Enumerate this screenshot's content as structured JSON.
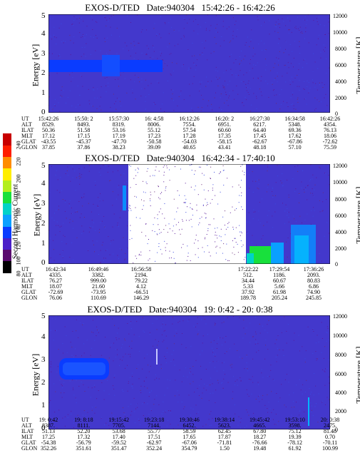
{
  "panels": [
    {
      "title": "EXOS-D/TED   Date:940304   15:42:26 - 16:42:26",
      "ylabel": "Energy [eV]",
      "ylabel2": "Temperature [K]",
      "yticks": [
        "5",
        "4",
        "3",
        "2",
        "1",
        "0"
      ],
      "y2ticks": [
        "12000",
        "10000",
        "8000",
        "6000",
        "4000",
        "2000",
        "0"
      ],
      "ephemeris": {
        "labels": [
          "UT",
          "ALT",
          "ILAT",
          "MLT",
          "GLAT",
          "GLON"
        ],
        "columns": [
          [
            "15:42:26",
            "8529.",
            "50.36",
            "17.12",
            "-43.55",
            "37.85"
          ],
          [
            "15:50: 2",
            "8493.",
            "51.58",
            "17.15",
            "-45.37",
            "37.86"
          ],
          [
            "15:57:30",
            "8319.",
            "53.16",
            "17.19",
            "-47.70",
            "38.23"
          ],
          [
            "16: 4:58",
            "8006.",
            "55.12",
            "17.23",
            "-50.58",
            "39.09"
          ],
          [
            "16:12:26",
            "7554.",
            "57.54",
            "17.28",
            "-54.03",
            "40.65"
          ],
          [
            "16:20: 2",
            "6951.",
            "60.60",
            "17.35",
            "-58.15",
            "43.41"
          ],
          [
            "16:27:30",
            "6217.",
            "64.40",
            "17.45",
            "-62.67",
            "48.18"
          ],
          [
            "16:34:58",
            "5348.",
            "69.36",
            "17.62",
            "-67.86",
            "57.10"
          ],
          [
            "16:42:26",
            "4354.",
            "76.13",
            "18.06",
            "-72.62",
            "75.59"
          ]
        ]
      }
    },
    {
      "title": "EXOS-D/TED   Date:940304   16:42:34 - 17:40:10",
      "ylabel": "Energy [eV]",
      "ylabel2": "Temperature [K]",
      "yticks": [
        "5",
        "4",
        "3",
        "2",
        "1",
        "0"
      ],
      "y2ticks": [
        "12000",
        "10000",
        "8000",
        "6000",
        "4000",
        "2000",
        "0"
      ],
      "ephemeris": {
        "labels": [
          "UT",
          "ALT",
          "ILAT",
          "MLT",
          "GLAT",
          "GLON"
        ],
        "columns": [
          [
            "16:42:34",
            "4335.",
            "76.27",
            "18.07",
            "-72.69",
            "76.06"
          ],
          [
            "16:49:46",
            "3382.",
            "999.00",
            "21.60",
            "-73.95",
            "110.69"
          ],
          [
            "16:56:58",
            "2194.",
            "79.22",
            "4.12",
            "-66.51",
            "146.29"
          ],
          [
            "17:22:22",
            "512.",
            "34.44",
            "5.33",
            "37.92",
            "189.78"
          ],
          [
            "17:29:54",
            "1186.",
            "60.67",
            "5.66",
            "61.98",
            "205.24"
          ],
          [
            "17:36:26",
            "2093.",
            "80.83",
            "6.86",
            "74.90",
            "245.85"
          ]
        ]
      }
    },
    {
      "title": "EXOS-D/TED   Date:940304   19: 0:42 - 20: 0:38",
      "ylabel": "Energy [eV]",
      "ylabel2": "Temperature [K]",
      "yticks": [
        "5",
        "4",
        "3",
        "2",
        "1",
        "0"
      ],
      "y2ticks": [
        "12000",
        "10000",
        "8000",
        "6000",
        "4000",
        "2000",
        "0"
      ],
      "ephemeris": {
        "labels": [
          "UT",
          "ALT",
          "ILAT",
          "MLT",
          "GLAT",
          "GLON"
        ],
        "columns": [
          [
            "19: 0:42",
            "8387.",
            "51.13",
            "17.25",
            "-54.38",
            "352.26"
          ],
          [
            "19: 8:18",
            "8111.",
            "52.20",
            "17.32",
            "-56.79",
            "351.61"
          ],
          [
            "19:15:42",
            "7705.",
            "53.68",
            "17.40",
            "-59.52",
            "351.47"
          ],
          [
            "19:23:18",
            "7144.",
            "55.77",
            "17.51",
            "-62.97",
            "352.24"
          ],
          [
            "19:30:46",
            "6452.",
            "58.59",
            "17.65",
            "-67.06",
            "354.79"
          ],
          [
            "19:38:14",
            "5623.",
            "62.45",
            "17.87",
            "-71.81",
            "1.50"
          ],
          [
            "19:45:42",
            "4665.",
            "67.80",
            "18.27",
            "-76.66",
            "19.48"
          ],
          [
            "19:53:10",
            "3598.",
            "75.12",
            "19.39",
            "-78.12",
            "61.92"
          ],
          [
            "20: 0:38",
            "2475.",
            "81.48",
            "0.70",
            "-70.11",
            "100.99"
          ]
        ]
      }
    }
  ],
  "colorbar": {
    "label": "Second Harmonic Current",
    "ticks": [
      "240",
      "220",
      "200",
      "180",
      "160",
      "140",
      "120",
      "100",
      "80"
    ],
    "colors": [
      "#000000",
      "#5a0a6e",
      "#4b1fc8",
      "#0a3cff",
      "#0aa0ff",
      "#00d2c8",
      "#18e03c",
      "#b4ee1e",
      "#ffee00",
      "#ff8c00",
      "#ff1e00",
      "#c80000"
    ]
  },
  "chart_data": [
    {
      "type": "heatmap",
      "title": "EXOS-D/TED   Date:940304   15:42:26 - 16:42:26",
      "xlabel": "UT",
      "ylabel": "Energy [eV]",
      "ylabel2": "Temperature [K]",
      "ylim": [
        0,
        5
      ],
      "y2lim": [
        0,
        12000
      ],
      "x": [
        "15:42:26",
        "15:50: 2",
        "15:57:30",
        "16: 4:58",
        "16:12:26",
        "16:20: 2",
        "16:27:30",
        "16:34:58",
        "16:42:26"
      ],
      "features": [
        {
          "band_energy_eV": [
            2.0,
            2.6
          ],
          "ut_range": [
            "15:42:26",
            "16: 4:58"
          ],
          "level": 150
        },
        {
          "band_energy_eV": [
            1.5,
            2.9
          ],
          "ut_range": [
            "15:53:00",
            "15:56:00"
          ],
          "level": 160
        }
      ],
      "background_level": 120
    },
    {
      "type": "heatmap",
      "title": "EXOS-D/TED   Date:940304   16:42:34 - 17:40:10",
      "xlabel": "UT",
      "ylabel": "Energy [eV]",
      "ylabel2": "Temperature [K]",
      "ylim": [
        0,
        5
      ],
      "y2lim": [
        0,
        12000
      ],
      "x": [
        "16:42:34",
        "16:49:46",
        "16:56:58",
        "17:22:22",
        "17:29:54",
        "17:36:26"
      ],
      "data_gap": [
        "16:58:00",
        "17:22:00"
      ],
      "features": [
        {
          "band_energy_eV": [
            0.0,
            0.8
          ],
          "ut_range": [
            "17:22:22",
            "17:26:00"
          ],
          "level": 180
        },
        {
          "band_energy_eV": [
            0.0,
            1.8
          ],
          "ut_range": [
            "17:31:00",
            "17:37:00"
          ],
          "level": 160
        }
      ],
      "background_level": 120
    },
    {
      "type": "heatmap",
      "title": "EXOS-D/TED   Date:940304   19: 0:42 - 20: 0:38",
      "xlabel": "UT",
      "ylabel": "Energy [eV]",
      "ylabel2": "Temperature [K]",
      "ylim": [
        0,
        5
      ],
      "y2lim": [
        0,
        12000
      ],
      "x": [
        "19: 0:42",
        "19: 8:18",
        "19:15:42",
        "19:23:18",
        "19:30:46",
        "19:38:14",
        "19:45:42",
        "19:53:10",
        "20: 0:38"
      ],
      "features": [
        {
          "band_energy_eV": [
            1.9,
            2.8
          ],
          "ut_range": [
            "19: 2:00",
            "19:10:00"
          ],
          "level": 150
        }
      ],
      "background_level": 120
    }
  ]
}
